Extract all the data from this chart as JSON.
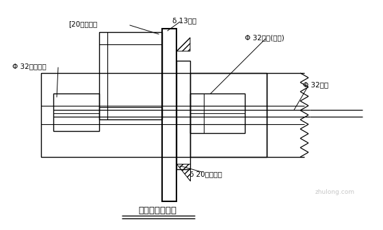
{
  "title": "拉杆位置大样图",
  "bg_color": "#ffffff",
  "lc": "#000000",
  "labels": {
    "c_channel": "[20加强槽钢",
    "face_plate": "δ 13模面",
    "coarse_nut": "Φ 32粗制螺母",
    "long_nut": "Φ 32螺母(加长)",
    "tie_rod": "Φ 32拉杆",
    "steel_plate": "δ 20加强钉板"
  },
  "figsize": [
    5.6,
    3.37
  ],
  "dpi": 100
}
